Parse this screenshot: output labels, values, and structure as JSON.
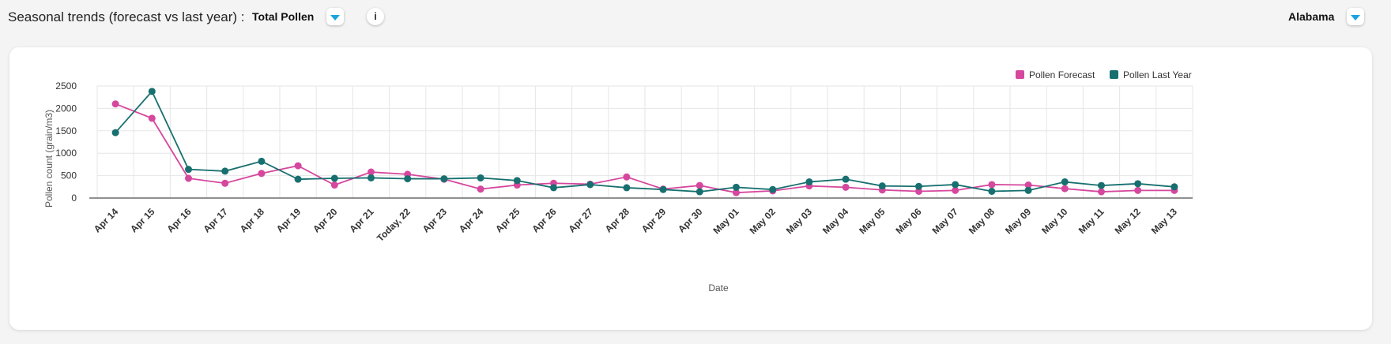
{
  "header": {
    "title": "Seasonal trends (forecast vs last year) :",
    "selected_metric": "Total Pollen",
    "info_label": "i",
    "region": "Alabama"
  },
  "colors": {
    "forecast": "#d6479e",
    "last_year": "#17706f",
    "dropdown_accent": "#1aa3e0"
  },
  "chart_data": {
    "type": "line",
    "xlabel": "Date",
    "ylabel": "Pollen count (grain/m3)",
    "ylim": [
      0,
      2500
    ],
    "yticks": [
      0,
      500,
      1000,
      1500,
      2000,
      2500
    ],
    "grid": true,
    "legend_position": "top-right",
    "categories": [
      "Apr 14",
      "Apr 15",
      "Apr 16",
      "Apr 17",
      "Apr 18",
      "Apr 19",
      "Apr 20",
      "Apr 21",
      "Today, 22",
      "Apr 23",
      "Apr 24",
      "Apr 25",
      "Apr 26",
      "Apr 27",
      "Apr 28",
      "Apr 29",
      "Apr 30",
      "May 01",
      "May 02",
      "May 03",
      "May 04",
      "May 05",
      "May 06",
      "May 07",
      "May 08",
      "May 09",
      "May 10",
      "May 11",
      "May 12",
      "May 13"
    ],
    "series": [
      {
        "name": "Pollen Forecast",
        "color": "#d6479e",
        "values": [
          2100,
          1780,
          440,
          330,
          550,
          720,
          290,
          580,
          530,
          420,
          200,
          290,
          330,
          310,
          470,
          200,
          280,
          120,
          160,
          270,
          240,
          180,
          150,
          170,
          300,
          290,
          210,
          140,
          170,
          170
        ]
      },
      {
        "name": "Pollen Last Year",
        "color": "#17706f",
        "values": [
          1460,
          2380,
          640,
          600,
          820,
          420,
          440,
          450,
          430,
          430,
          450,
          390,
          230,
          300,
          230,
          190,
          140,
          240,
          190,
          360,
          420,
          270,
          260,
          300,
          150,
          170,
          360,
          280,
          320,
          250
        ]
      }
    ]
  }
}
